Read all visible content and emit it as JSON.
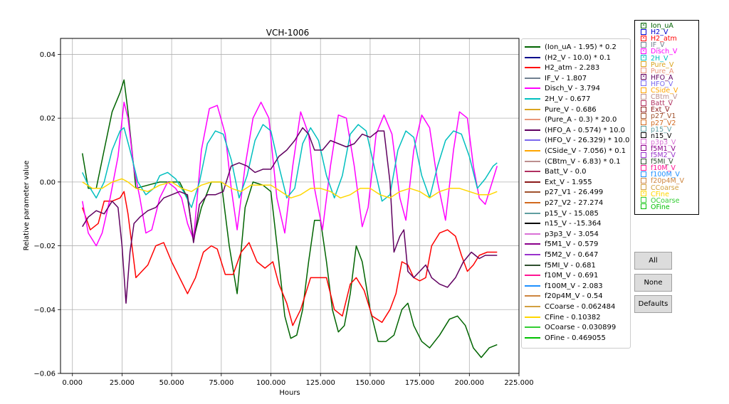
{
  "chart_data": {
    "type": "line",
    "title": "VCH-1006",
    "xlabel": "Hours",
    "ylabel": "Relative parameter value",
    "xlim": [
      -6000,
      225000
    ],
    "ylim": [
      -0.06,
      0.045
    ],
    "xticks": [
      0,
      25000,
      50000,
      75000,
      100000,
      125000,
      150000,
      175000,
      200000,
      225000
    ],
    "xtick_labels": [
      "0.000",
      "25.000",
      "50.000",
      "75.000",
      "100.000",
      "125.000",
      "150.000",
      "175.000",
      "200.000",
      "225.000"
    ],
    "yticks": [
      -0.06,
      -0.04,
      -0.02,
      0.0,
      0.02,
      0.04
    ],
    "ytick_labels": [
      "−0.06",
      "−0.04",
      "−0.02",
      "0.00",
      "0.02",
      "0.04"
    ],
    "grid": true,
    "legend_position": "right-outside",
    "series": [
      {
        "name": "(Ion_uA - 1.95) * 0.2",
        "color": "#006400",
        "x": [
          5000,
          8000,
          12000,
          16000,
          20000,
          24000,
          26000,
          28000,
          32000,
          38000,
          44000,
          50000,
          54000,
          58000,
          61000,
          65000,
          70000,
          75000,
          79000,
          83000,
          87000,
          91000,
          96000,
          100000,
          104000,
          107000,
          110000,
          113000,
          116000,
          119000,
          122000,
          125000,
          128000,
          131000,
          134000,
          137000,
          140000,
          143000,
          146000,
          150000,
          154000,
          158000,
          162000,
          166000,
          169000,
          172000,
          176000,
          180000,
          185000,
          190000,
          194000,
          198000,
          202000,
          206000,
          210000,
          214000
        ],
        "y": [
          0.009,
          -0.002,
          -0.002,
          0.01,
          0.022,
          0.028,
          0.032,
          0.022,
          -0.002,
          -0.001,
          0.0,
          0.0,
          0.0,
          -0.005,
          -0.018,
          -0.008,
          0.0,
          0.0,
          -0.02,
          -0.035,
          -0.008,
          0.0,
          -0.001,
          -0.003,
          -0.025,
          -0.042,
          -0.049,
          -0.048,
          -0.04,
          -0.025,
          -0.012,
          -0.012,
          -0.025,
          -0.04,
          -0.047,
          -0.045,
          -0.035,
          -0.02,
          -0.025,
          -0.04,
          -0.05,
          -0.05,
          -0.048,
          -0.04,
          -0.038,
          -0.045,
          -0.05,
          -0.052,
          -0.048,
          -0.043,
          -0.042,
          -0.045,
          -0.052,
          -0.055,
          -0.052,
          -0.051
        ]
      },
      {
        "name": "H2_atm - 2.283",
        "color": "#ff0000",
        "x": [
          5000,
          9000,
          13000,
          16000,
          20000,
          24000,
          26000,
          28000,
          32000,
          38000,
          42000,
          46000,
          50000,
          54000,
          58000,
          62000,
          66000,
          70000,
          73000,
          77000,
          81000,
          85000,
          89000,
          93000,
          97000,
          101000,
          104000,
          108000,
          111000,
          115000,
          120000,
          125000,
          128000,
          132000,
          136000,
          140000,
          143000,
          147000,
          151000,
          156000,
          160000,
          163000,
          166000,
          169000,
          172000,
          175000,
          178000,
          181000,
          185000,
          189000,
          193000,
          196000,
          199000,
          202000,
          205000,
          209000,
          214000
        ],
        "y": [
          -0.008,
          -0.015,
          -0.013,
          -0.006,
          -0.006,
          -0.005,
          -0.003,
          -0.01,
          -0.03,
          -0.026,
          -0.02,
          -0.019,
          -0.025,
          -0.03,
          -0.035,
          -0.03,
          -0.022,
          -0.02,
          -0.021,
          -0.029,
          -0.029,
          -0.022,
          -0.019,
          -0.025,
          -0.027,
          -0.025,
          -0.032,
          -0.038,
          -0.045,
          -0.04,
          -0.03,
          -0.03,
          -0.03,
          -0.04,
          -0.042,
          -0.032,
          -0.03,
          -0.034,
          -0.042,
          -0.044,
          -0.04,
          -0.035,
          -0.025,
          -0.026,
          -0.03,
          -0.031,
          -0.03,
          -0.02,
          -0.016,
          -0.015,
          -0.017,
          -0.023,
          -0.028,
          -0.026,
          -0.023,
          -0.022,
          -0.022
        ]
      },
      {
        "name": "Disch_V - 3.794",
        "color": "#ff00ff",
        "x": [
          5000,
          8000,
          12000,
          15000,
          19000,
          23000,
          26000,
          28000,
          31000,
          34000,
          37000,
          40000,
          44000,
          48000,
          52000,
          55000,
          58000,
          61000,
          65000,
          69000,
          73000,
          77000,
          80000,
          83000,
          87000,
          91000,
          95000,
          99000,
          103000,
          107000,
          111000,
          115000,
          119000,
          122000,
          126000,
          130000,
          134000,
          138000,
          142000,
          146000,
          149000,
          153000,
          157000,
          161000,
          165000,
          168000,
          172000,
          176000,
          180000,
          184000,
          188000,
          192000,
          195000,
          199000,
          202000,
          205000,
          208000,
          212000,
          214000
        ],
        "y": [
          -0.006,
          -0.016,
          -0.02,
          -0.016,
          -0.005,
          0.008,
          0.025,
          0.02,
          0.004,
          -0.005,
          -0.016,
          -0.015,
          -0.005,
          0.0,
          -0.002,
          -0.005,
          -0.013,
          -0.018,
          0.01,
          0.023,
          0.024,
          0.015,
          -0.002,
          -0.015,
          0.005,
          0.02,
          0.025,
          0.02,
          -0.005,
          -0.016,
          0.005,
          0.022,
          0.015,
          -0.002,
          -0.015,
          0.005,
          0.021,
          0.02,
          0.005,
          -0.014,
          -0.008,
          0.015,
          0.021,
          0.015,
          -0.005,
          -0.012,
          0.01,
          0.021,
          0.017,
          0.0,
          -0.012,
          0.01,
          0.022,
          0.02,
          0.005,
          -0.005,
          -0.007,
          0.001,
          0.005
        ]
      },
      {
        "name": "2H_V - 0.677",
        "color": "#00bfbf",
        "x": [
          5000,
          8000,
          12000,
          16000,
          20000,
          24000,
          26000,
          29000,
          33000,
          37000,
          41000,
          44000,
          48000,
          52000,
          56000,
          60000,
          64000,
          68000,
          72000,
          76000,
          80000,
          84000,
          88000,
          92000,
          96000,
          100000,
          104000,
          108000,
          112000,
          116000,
          120000,
          124000,
          128000,
          132000,
          136000,
          140000,
          144000,
          148000,
          152000,
          156000,
          160000,
          164000,
          168000,
          172000,
          176000,
          180000,
          184000,
          188000,
          192000,
          196000,
          200000,
          204000,
          208000,
          212000,
          214000
        ],
        "y": [
          0.003,
          -0.001,
          -0.005,
          0.0,
          0.01,
          0.016,
          0.017,
          0.01,
          0.0,
          -0.004,
          -0.002,
          0.002,
          0.003,
          0.001,
          -0.003,
          -0.008,
          0.0,
          0.012,
          0.016,
          0.015,
          0.007,
          -0.005,
          0.002,
          0.013,
          0.018,
          0.016,
          0.005,
          -0.005,
          -0.002,
          0.012,
          0.017,
          0.013,
          0.002,
          -0.005,
          0.002,
          0.015,
          0.018,
          0.016,
          0.005,
          -0.006,
          -0.004,
          0.01,
          0.016,
          0.014,
          0.002,
          -0.005,
          0.005,
          0.013,
          0.016,
          0.015,
          0.008,
          -0.002,
          0.001,
          0.005,
          0.006
        ]
      },
      {
        "name": "(HFO_A - 0.574) * 10.0",
        "color": "#600060",
        "x": [
          5000,
          8000,
          12000,
          16000,
          20000,
          23000,
          25000,
          27000,
          29000,
          31000,
          34000,
          38000,
          42000,
          46000,
          50000,
          54000,
          58000,
          61000,
          64000,
          68000,
          72000,
          76000,
          80000,
          84000,
          88000,
          92000,
          96000,
          100000,
          104000,
          108000,
          112000,
          116000,
          119000,
          122000,
          126000,
          130000,
          134000,
          138000,
          142000,
          146000,
          150000,
          154000,
          157000,
          160000,
          162000,
          165000,
          167000,
          169000,
          172000,
          175000,
          178000,
          181000,
          185000,
          189000,
          193000,
          197000,
          201000,
          205000,
          208000,
          211000,
          214000
        ],
        "y": [
          -0.014,
          -0.011,
          -0.009,
          -0.01,
          -0.006,
          -0.008,
          -0.02,
          -0.038,
          -0.022,
          -0.013,
          -0.011,
          -0.009,
          -0.008,
          -0.005,
          -0.004,
          -0.003,
          -0.004,
          -0.019,
          -0.007,
          -0.004,
          -0.004,
          -0.003,
          0.005,
          0.006,
          0.005,
          0.003,
          0.004,
          0.004,
          0.008,
          0.01,
          0.013,
          0.017,
          0.015,
          0.01,
          0.01,
          0.013,
          0.012,
          0.011,
          0.012,
          0.015,
          0.014,
          0.016,
          0.016,
          0.0,
          -0.022,
          -0.017,
          -0.015,
          -0.028,
          -0.03,
          -0.028,
          -0.026,
          -0.03,
          -0.032,
          -0.033,
          -0.03,
          -0.025,
          -0.022,
          -0.024,
          -0.023,
          -0.023,
          -0.023
        ]
      },
      {
        "name": "CFine - 0.10382",
        "color": "#ffd700",
        "x": [
          5000,
          10000,
          15000,
          20000,
          25000,
          28000,
          32000,
          38000,
          44000,
          50000,
          55000,
          60000,
          65000,
          70000,
          75000,
          80000,
          85000,
          90000,
          95000,
          100000,
          105000,
          110000,
          115000,
          120000,
          125000,
          130000,
          135000,
          140000,
          145000,
          150000,
          155000,
          160000,
          165000,
          170000,
          175000,
          180000,
          185000,
          190000,
          195000,
          200000,
          205000,
          210000,
          214000
        ],
        "y": [
          0.0,
          -0.002,
          -0.002,
          0.0,
          0.001,
          0.0,
          -0.002,
          -0.003,
          -0.001,
          0.0,
          -0.002,
          -0.003,
          -0.001,
          0.0,
          0.0,
          -0.002,
          -0.003,
          -0.001,
          -0.001,
          -0.001,
          -0.003,
          -0.005,
          -0.004,
          -0.002,
          -0.002,
          -0.003,
          -0.005,
          -0.004,
          -0.002,
          -0.002,
          -0.004,
          -0.005,
          -0.003,
          -0.002,
          -0.003,
          -0.005,
          -0.003,
          -0.002,
          -0.002,
          -0.003,
          -0.004,
          -0.004,
          -0.003
        ]
      }
    ]
  },
  "legend": [
    {
      "label": "(Ion_uA - 1.95) * 0.2",
      "color": "#006400"
    },
    {
      "label": "(H2_V - 10.0) * 0.1",
      "color": "#00008b"
    },
    {
      "label": "H2_atm - 2.283",
      "color": "#ff0000"
    },
    {
      "label": "IF_V - 1.807",
      "color": "#708090"
    },
    {
      "label": "Disch_V - 3.794",
      "color": "#ff00ff"
    },
    {
      "label": "2H_V - 0.677",
      "color": "#00bfbf"
    },
    {
      "label": "Pure_V - 0.686",
      "color": "#daa520"
    },
    {
      "label": "(Pure_A - 0.3) * 20.0",
      "color": "#e9967a"
    },
    {
      "label": "(HFO_A - 0.574) * 10.0",
      "color": "#600060"
    },
    {
      "label": "(HFO_V - 26.329) * 10.0",
      "color": "#7b68ee"
    },
    {
      "label": "(CSide_V - 7.056) * 0.1",
      "color": "#ffa500"
    },
    {
      "label": "(CBtm_V - 6.83) * 0.1",
      "color": "#bc8f8f"
    },
    {
      "label": "Batt_V - 0.0",
      "color": "#b03060"
    },
    {
      "label": "Ext_V - 1.955",
      "color": "#8b1a1a"
    },
    {
      "label": "p27_V1 - 26.499",
      "color": "#a0522d"
    },
    {
      "label": "p27_V2 - 27.274",
      "color": "#d2691e"
    },
    {
      "label": "p15_V - 15.085",
      "color": "#5f9ea0"
    },
    {
      "label": "n15_V - -15.364",
      "color": "#000000"
    },
    {
      "label": "p3p3_V - 3.054",
      "color": "#da70d6"
    },
    {
      "label": "f5M1_V - 0.579",
      "color": "#8b008b"
    },
    {
      "label": "f5M2_V - 0.647",
      "color": "#9932cc"
    },
    {
      "label": "f5MI_V - 0.681",
      "color": "#2f4f2f"
    },
    {
      "label": "f10M_V - 0.691",
      "color": "#ff1493"
    },
    {
      "label": "f100M_V - 2.083",
      "color": "#1e90ff"
    },
    {
      "label": "f20p4M_V - 0.54",
      "color": "#cd853f"
    },
    {
      "label": "CCoarse - 0.062484",
      "color": "#d2a040"
    },
    {
      "label": "CFine - 0.10382",
      "color": "#ffd700"
    },
    {
      "label": "OCoarse - 0.030899",
      "color": "#32cd32"
    },
    {
      "label": "OFine - 0.469055",
      "color": "#00c000"
    }
  ],
  "checkboxes": [
    {
      "label": "Ion_uA",
      "color": "#006400",
      "checked": true
    },
    {
      "label": "H2_V",
      "color": "#0000cd",
      "checked": false
    },
    {
      "label": "H2_atm",
      "color": "#ff0000",
      "checked": true
    },
    {
      "label": "IF_V",
      "color": "#708090",
      "checked": false
    },
    {
      "label": "Disch_V",
      "color": "#ff00ff",
      "checked": true
    },
    {
      "label": "2H_V",
      "color": "#00bfbf",
      "checked": true
    },
    {
      "label": "Pure_V",
      "color": "#daa520",
      "checked": false
    },
    {
      "label": "Pure_A",
      "color": "#e9967a",
      "checked": false
    },
    {
      "label": "HFO_A",
      "color": "#600060",
      "checked": true
    },
    {
      "label": "HFO_V",
      "color": "#7b68ee",
      "checked": false
    },
    {
      "label": "CSide_V",
      "color": "#ffa500",
      "checked": false
    },
    {
      "label": "CBtm_V",
      "color": "#bc8f8f",
      "checked": false
    },
    {
      "label": "Batt_V",
      "color": "#b03060",
      "checked": false
    },
    {
      "label": "Ext_V",
      "color": "#8b1a1a",
      "checked": false
    },
    {
      "label": "p27_V1",
      "color": "#a0522d",
      "checked": false
    },
    {
      "label": "p27_V2",
      "color": "#d2691e",
      "checked": false
    },
    {
      "label": "p15_V",
      "color": "#5f9ea0",
      "checked": false
    },
    {
      "label": "n15_V",
      "color": "#000000",
      "checked": false
    },
    {
      "label": "p3p3_V",
      "color": "#da70d6",
      "checked": false
    },
    {
      "label": "f5M1_V",
      "color": "#8b008b",
      "checked": false
    },
    {
      "label": "f5M2_V",
      "color": "#9932cc",
      "checked": false
    },
    {
      "label": "f5MI_V",
      "color": "#2f4f2f",
      "checked": false
    },
    {
      "label": "f10M_V",
      "color": "#ff1493",
      "checked": false
    },
    {
      "label": "f100M_V",
      "color": "#1e90ff",
      "checked": false
    },
    {
      "label": "f20p4M_V",
      "color": "#cd853f",
      "checked": false
    },
    {
      "label": "CCoarse",
      "color": "#d2a040",
      "checked": false
    },
    {
      "label": "CFine",
      "color": "#ffd700",
      "checked": true
    },
    {
      "label": "OCoarse",
      "color": "#32cd32",
      "checked": false
    },
    {
      "label": "OFine",
      "color": "#00c000",
      "checked": false
    }
  ],
  "buttons": {
    "all": "All",
    "none": "None",
    "defaults": "Defaults"
  }
}
